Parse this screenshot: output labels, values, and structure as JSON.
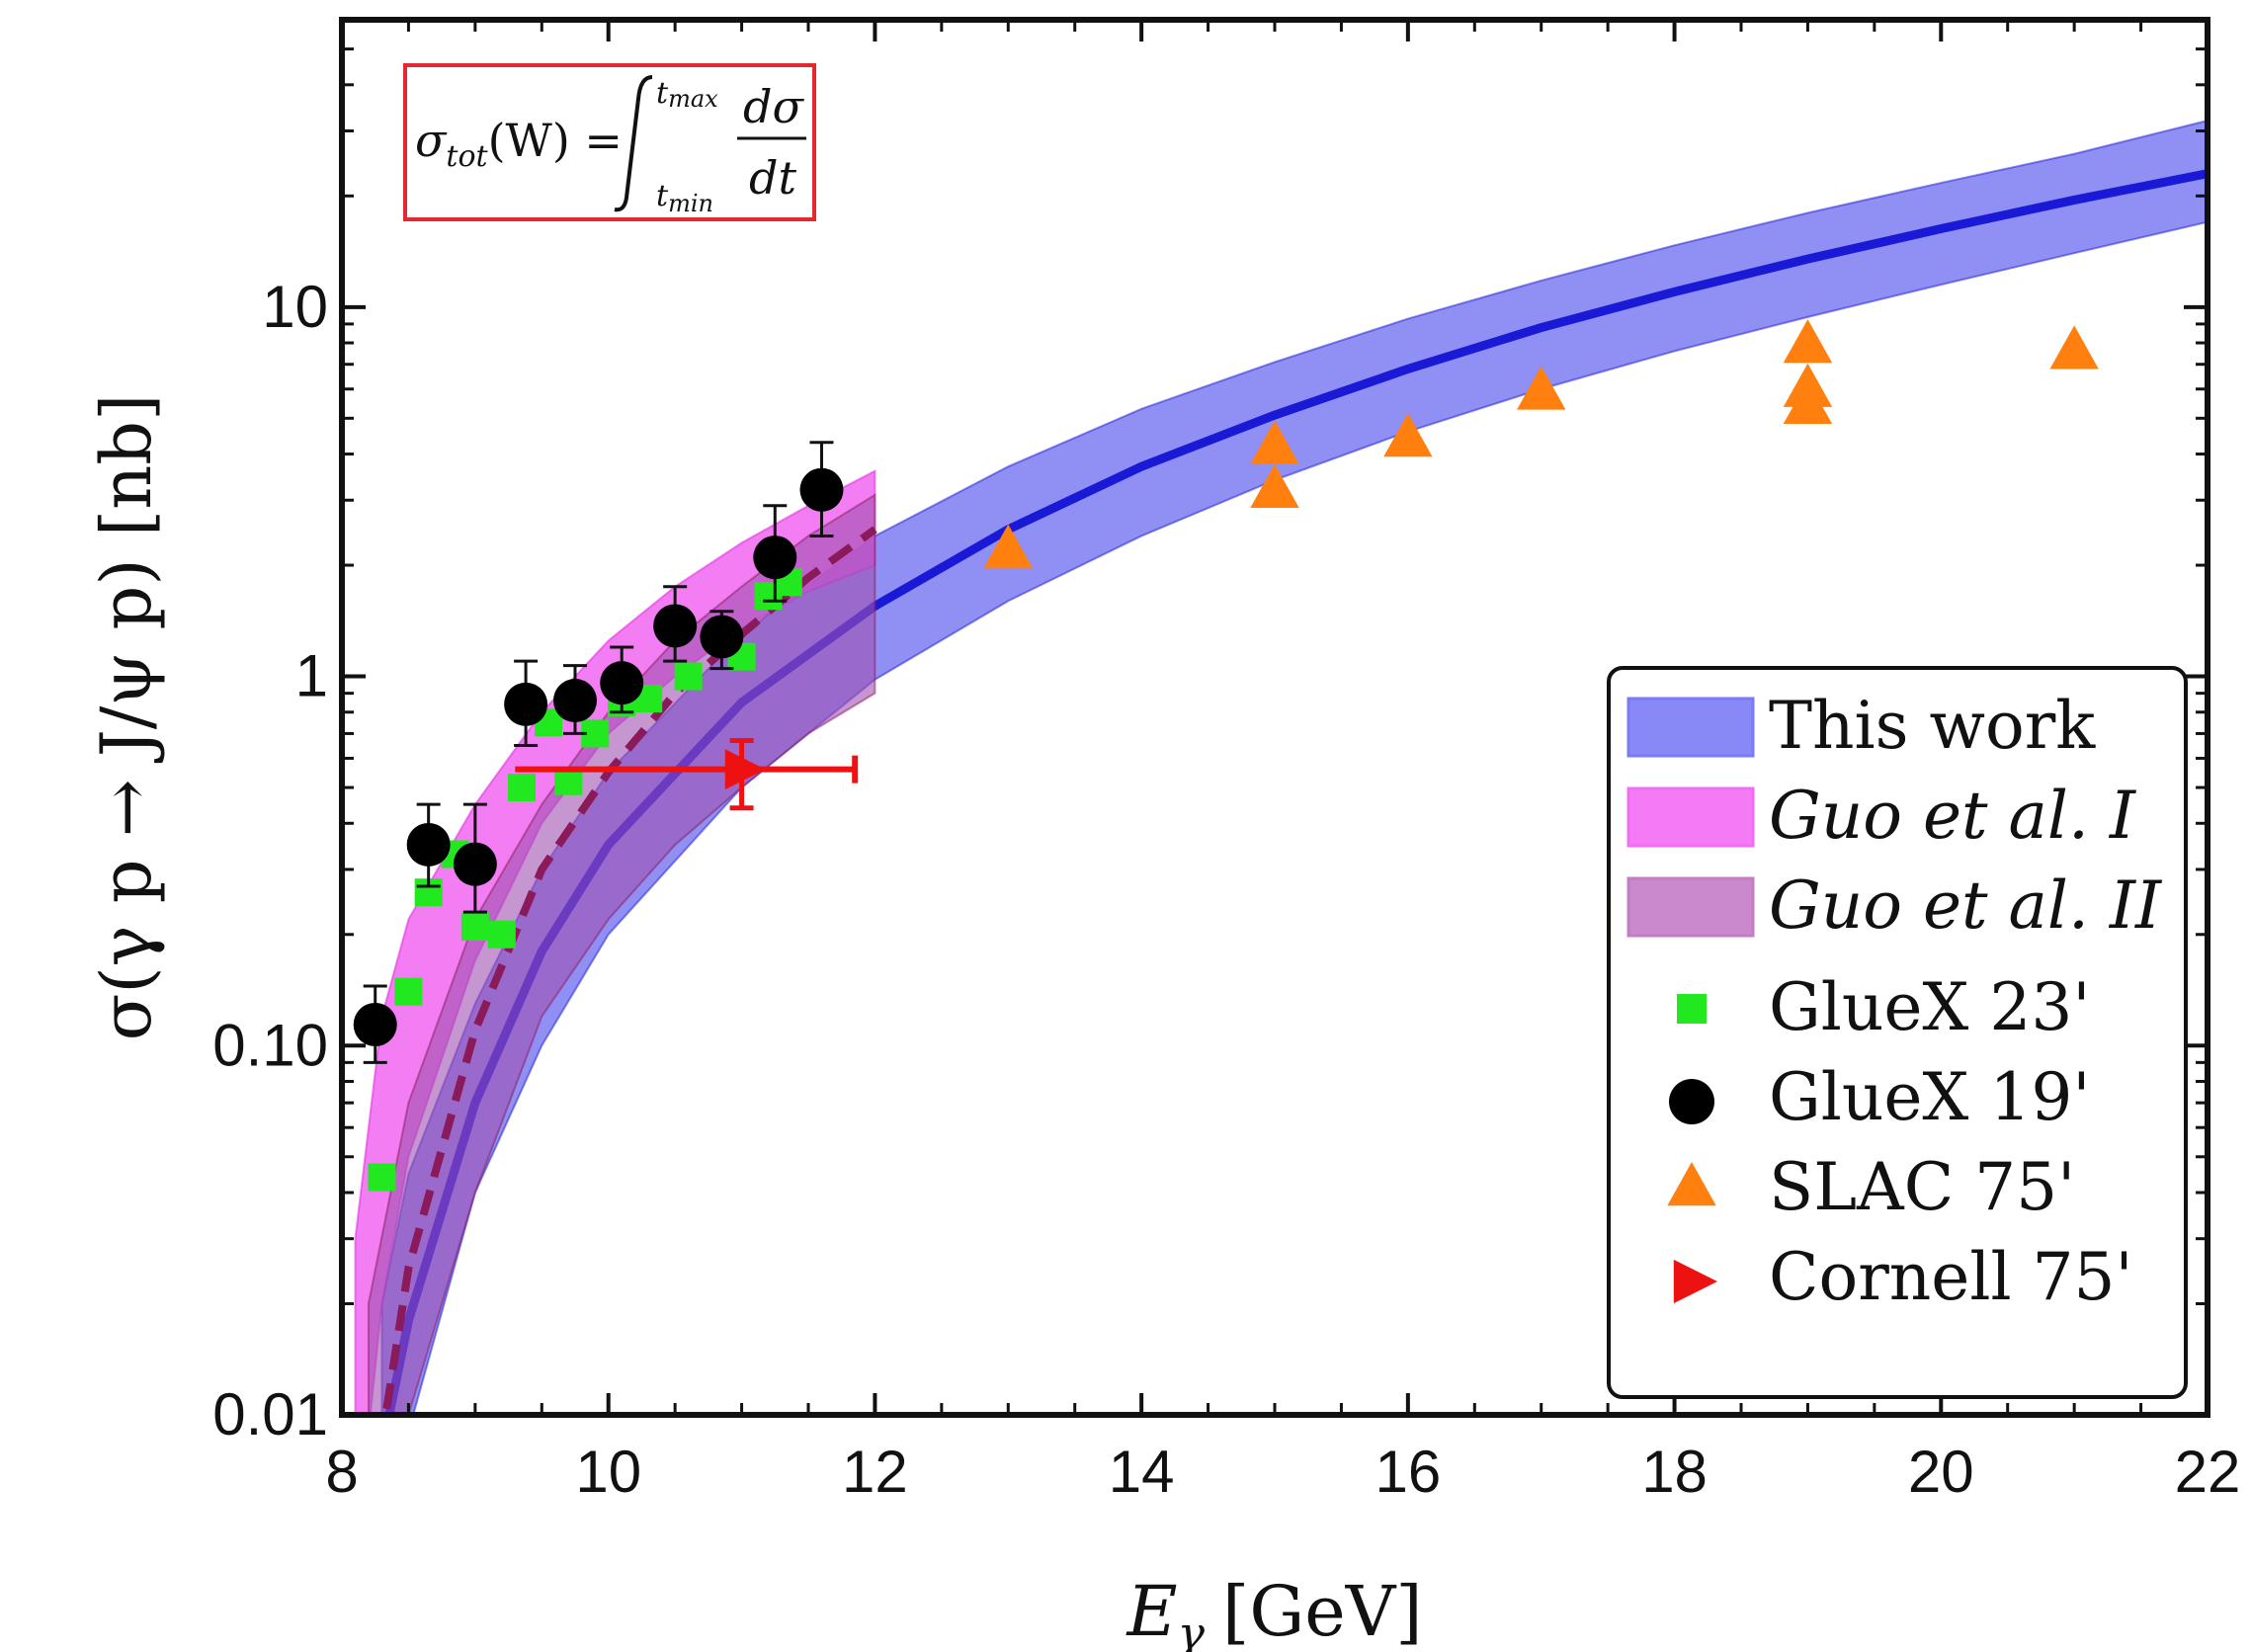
{
  "chart_data": {
    "type": "scatter",
    "title": "",
    "xlabel": "E",
    "xlabel_sub": "γ",
    "xlabel_unit": "[GeV]",
    "ylabel": "σ(γ p → J/ψ p) [nb]",
    "xlim": [
      8,
      22
    ],
    "ylim": [
      0.01,
      60
    ],
    "yscale": "log",
    "x_ticks": [
      "8",
      "10",
      "12",
      "14",
      "16",
      "18",
      "20",
      "22"
    ],
    "y_ticks": [
      {
        "value": 0.01,
        "label": "0.01"
      },
      {
        "value": 0.1,
        "label": "0.10"
      },
      {
        "value": 1,
        "label": "1"
      },
      {
        "value": 10,
        "label": "10"
      }
    ],
    "formula": {
      "lhs": "σ",
      "lhs_sub": "tot",
      "arg": "(W) =",
      "int_upper": "t",
      "int_upper_sub": "max",
      "int_lower": "t",
      "int_lower_sub": "min",
      "numerator": "dσ",
      "denominator": "dt",
      "box_color": "#e8262d"
    },
    "legend_position": "bottom-right",
    "legend": [
      {
        "label": "This work",
        "symbol": "band",
        "color": "#7b7bf5",
        "italic": false
      },
      {
        "label": "Guo et al. I",
        "symbol": "band",
        "color": "#f46cf4",
        "italic": true
      },
      {
        "label": "Guo et al. II",
        "symbol": "band",
        "color": "#c47cc4",
        "italic": true
      },
      {
        "label": "GlueX 23'",
        "symbol": "square",
        "color": "#22e81f",
        "italic": false
      },
      {
        "label": "GlueX 19'",
        "symbol": "circle",
        "color": "#000000",
        "italic": false
      },
      {
        "label": "SLAC 75'",
        "symbol": "triangle",
        "color": "#ff7f0f",
        "italic": false
      },
      {
        "label": "Cornell 75'",
        "symbol": "triangle-right",
        "color": "#ee1111",
        "italic": false
      }
    ],
    "series": [
      {
        "name": "This work",
        "kind": "band",
        "color": "#1a1ad6",
        "fill": "#6a6af0",
        "x": [
          8.3,
          8.5,
          9.0,
          9.5,
          10,
          11,
          12,
          13,
          14,
          15,
          16,
          17,
          18,
          19,
          20,
          21,
          22
        ],
        "central": [
          0.008,
          0.018,
          0.07,
          0.18,
          0.35,
          0.85,
          1.55,
          2.5,
          3.7,
          5.1,
          6.8,
          8.8,
          11.0,
          13.5,
          16.3,
          19.5,
          23.0
        ],
        "lower": [
          0.004,
          0.009,
          0.04,
          0.1,
          0.2,
          0.5,
          0.98,
          1.6,
          2.4,
          3.4,
          4.6,
          6.0,
          7.6,
          9.4,
          11.5,
          14.0,
          17.0
        ],
        "upper": [
          0.02,
          0.045,
          0.13,
          0.3,
          0.55,
          1.3,
          2.4,
          3.7,
          5.3,
          7.1,
          9.3,
          11.8,
          14.7,
          18.0,
          21.7,
          26.0,
          32.0
        ]
      },
      {
        "name": "Guo et al. I",
        "kind": "band",
        "color": "#e01ee0",
        "fill": "#f05cf0",
        "x": [
          8.1,
          8.3,
          8.5,
          9.0,
          9.5,
          10,
          10.5,
          11,
          11.5,
          12
        ],
        "lower": [
          0.004,
          0.02,
          0.05,
          0.17,
          0.4,
          0.7,
          1.0,
          1.35,
          1.7,
          2.0
        ],
        "upper": [
          0.03,
          0.12,
          0.22,
          0.45,
          0.8,
          1.25,
          1.75,
          2.3,
          2.9,
          3.6
        ]
      },
      {
        "name": "Guo et al. II",
        "kind": "band",
        "color": "#8a1a5a",
        "fill": "#a050b0",
        "x": [
          8.2,
          8.5,
          9.0,
          9.5,
          10,
          10.5,
          11,
          11.5,
          12
        ],
        "central": [
          0.005,
          0.025,
          0.11,
          0.3,
          0.55,
          0.9,
          1.3,
          1.85,
          2.5
        ],
        "lower": [
          0.002,
          0.01,
          0.04,
          0.12,
          0.22,
          0.35,
          0.5,
          0.7,
          0.9
        ],
        "upper": [
          0.02,
          0.07,
          0.22,
          0.45,
          0.8,
          1.25,
          1.75,
          2.4,
          3.1
        ]
      },
      {
        "name": "GlueX 23'",
        "kind": "points",
        "symbol": "square",
        "color": "#22e81f",
        "points": [
          [
            8.3,
            0.044
          ],
          [
            8.5,
            0.14
          ],
          [
            8.65,
            0.26
          ],
          [
            8.85,
            0.33
          ],
          [
            9.0,
            0.21
          ],
          [
            9.2,
            0.2
          ],
          [
            9.35,
            0.5
          ],
          [
            9.55,
            0.75
          ],
          [
            9.7,
            0.52
          ],
          [
            9.9,
            0.7
          ],
          [
            10.1,
            0.85
          ],
          [
            10.3,
            0.87
          ],
          [
            10.6,
            1.0
          ],
          [
            10.85,
            1.3
          ],
          [
            11.0,
            1.13
          ],
          [
            11.2,
            1.65
          ],
          [
            11.35,
            1.8
          ]
        ]
      },
      {
        "name": "GlueX 19'",
        "kind": "points",
        "symbol": "circle",
        "color": "#000000",
        "points": [
          {
            "x": 8.25,
            "y": 0.114,
            "ylo": 0.09,
            "yhi": 0.145
          },
          {
            "x": 8.65,
            "y": 0.35,
            "ylo": 0.27,
            "yhi": 0.45
          },
          {
            "x": 9.0,
            "y": 0.31,
            "ylo": 0.23,
            "yhi": 0.45
          },
          {
            "x": 9.38,
            "y": 0.84,
            "ylo": 0.65,
            "yhi": 1.1
          },
          {
            "x": 9.75,
            "y": 0.86,
            "ylo": 0.7,
            "yhi": 1.07
          },
          {
            "x": 10.1,
            "y": 0.96,
            "ylo": 0.8,
            "yhi": 1.2
          },
          {
            "x": 10.5,
            "y": 1.37,
            "ylo": 1.1,
            "yhi": 1.75
          },
          {
            "x": 10.85,
            "y": 1.28,
            "ylo": 1.05,
            "yhi": 1.5
          },
          {
            "x": 11.25,
            "y": 2.1,
            "ylo": 1.6,
            "yhi": 2.9
          },
          {
            "x": 11.6,
            "y": 3.2,
            "ylo": 2.4,
            "yhi": 4.3
          }
        ]
      },
      {
        "name": "SLAC 75'",
        "kind": "points",
        "symbol": "triangle",
        "color": "#ff7f0f",
        "points": [
          [
            13,
            2.2
          ],
          [
            15,
            3.2
          ],
          [
            15,
            4.2
          ],
          [
            16,
            4.4
          ],
          [
            17,
            5.9
          ],
          [
            19,
            5.4
          ],
          [
            19,
            6.0
          ],
          [
            19,
            7.9
          ],
          [
            21,
            7.6
          ]
        ]
      },
      {
        "name": "Cornell 75'",
        "kind": "points",
        "symbol": "triangle-right",
        "color": "#ee1111",
        "points": [
          {
            "x": 11.0,
            "y": 0.56,
            "xlo": 9.3,
            "xhi": 11.85,
            "ylo": 0.44,
            "yhi": 0.67
          }
        ]
      }
    ]
  }
}
